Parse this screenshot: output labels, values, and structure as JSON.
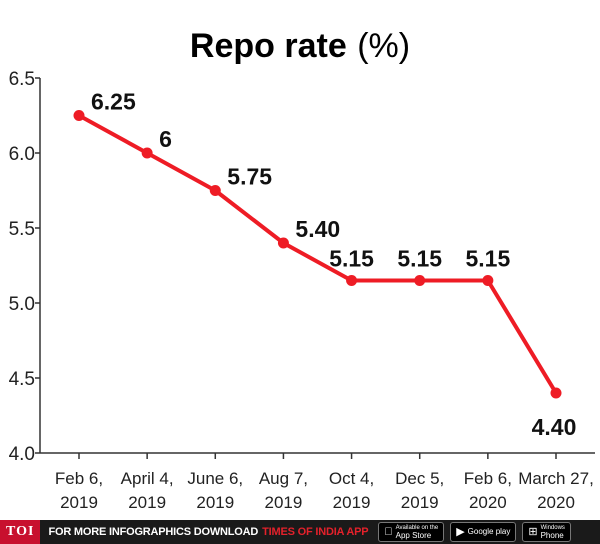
{
  "chart_data": {
    "type": "line",
    "title": "Repo rate",
    "title_unit": "(%)",
    "categories": [
      [
        "Feb 6,",
        "2019"
      ],
      [
        "April 4,",
        "2019"
      ],
      [
        "June 6,",
        "2019"
      ],
      [
        "Aug 7,",
        "2019"
      ],
      [
        "Oct 4,",
        "2019"
      ],
      [
        "Dec 5,",
        "2019"
      ],
      [
        "Feb 6,",
        "2020"
      ],
      [
        "March 27,",
        "2020"
      ]
    ],
    "values": [
      6.25,
      6,
      5.75,
      5.4,
      5.15,
      5.15,
      5.15,
      4.4
    ],
    "data_labels": [
      "6.25",
      "6",
      "5.75",
      "5.40",
      "5.15",
      "5.15",
      "5.15",
      "4.40"
    ],
    "yticks": [
      "4.0",
      "4.5",
      "5.0",
      "5.5",
      "6.0",
      "6.5"
    ],
    "ylim": [
      4.0,
      6.5
    ],
    "grid": false,
    "line_color": "#ee1c25"
  },
  "footer": {
    "logo": "TOI",
    "promo": "FOR MORE  INFOGRAPHICS DOWNLOAD",
    "brand": "TIMES OF INDIA  APP",
    "stores": [
      {
        "icon": "apple-icon",
        "glyph": "",
        "small": "Available on the",
        "name": "App Store"
      },
      {
        "icon": "play-icon",
        "glyph": "▶",
        "small": "",
        "name": "Google play"
      },
      {
        "icon": "windows-icon",
        "glyph": "⊞",
        "small": "Windows",
        "name": "Phone"
      }
    ]
  }
}
